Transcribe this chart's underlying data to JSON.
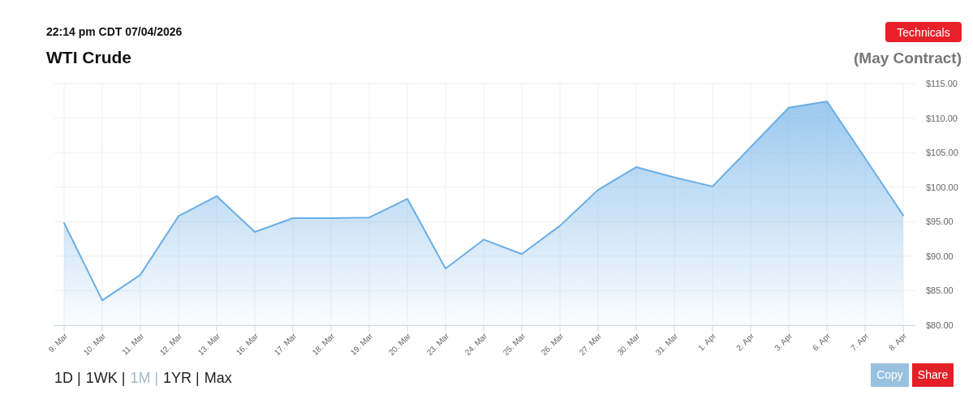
{
  "chart_data": {
    "type": "area",
    "title": "WTI Crude",
    "subtitle": "(May Contract)",
    "annotations": [
      "22:14 pm CDT 07/04/2026",
      "Technicals",
      "1D |",
      "1WK |",
      "1M |",
      "1YR |",
      "Max",
      "Copy",
      "Share"
    ],
    "categories": [
      "9. Mar",
      "10. Mar",
      "11. Mar",
      "12. Mar",
      "13. Mar",
      "16. Mar",
      "17. Mar",
      "18. Mar",
      "19. Mar",
      "20. Mar",
      "23. Mar",
      "24. Mar",
      "25. Mar",
      "26. Mar",
      "27. Mar",
      "30. Mar",
      "31. Mar",
      "1. Apr",
      "2. Apr",
      "3. Apr",
      "6. Apr",
      "7. Apr",
      "8. Apr"
    ],
    "series": [
      {
        "color": "#6aaee6",
        "values": [
          94.8,
          83.6,
          87.3,
          95.8,
          98.7,
          93.5,
          95.5,
          95.5,
          95.6,
          98.3,
          88.2,
          92.4,
          90.3,
          94.4,
          99.6,
          102.9,
          101.4,
          100.1,
          105.8,
          111.5,
          112.4,
          104.2,
          95.9
        ]
      }
    ],
    "ylim": [
      80,
      115
    ],
    "yticks": [
      {
        "value": 80,
        "label": "$80.00"
      },
      {
        "value": 85,
        "label": "$85.00"
      },
      {
        "value": 90,
        "label": "$90.00"
      },
      {
        "value": 95,
        "label": "$95.00"
      },
      {
        "value": 100,
        "label": "$100.00"
      },
      {
        "value": 105,
        "label": "$105.00"
      },
      {
        "value": 110,
        "label": "$110.00"
      },
      {
        "value": 115,
        "label": "$115.00"
      }
    ],
    "grid": true
  }
}
